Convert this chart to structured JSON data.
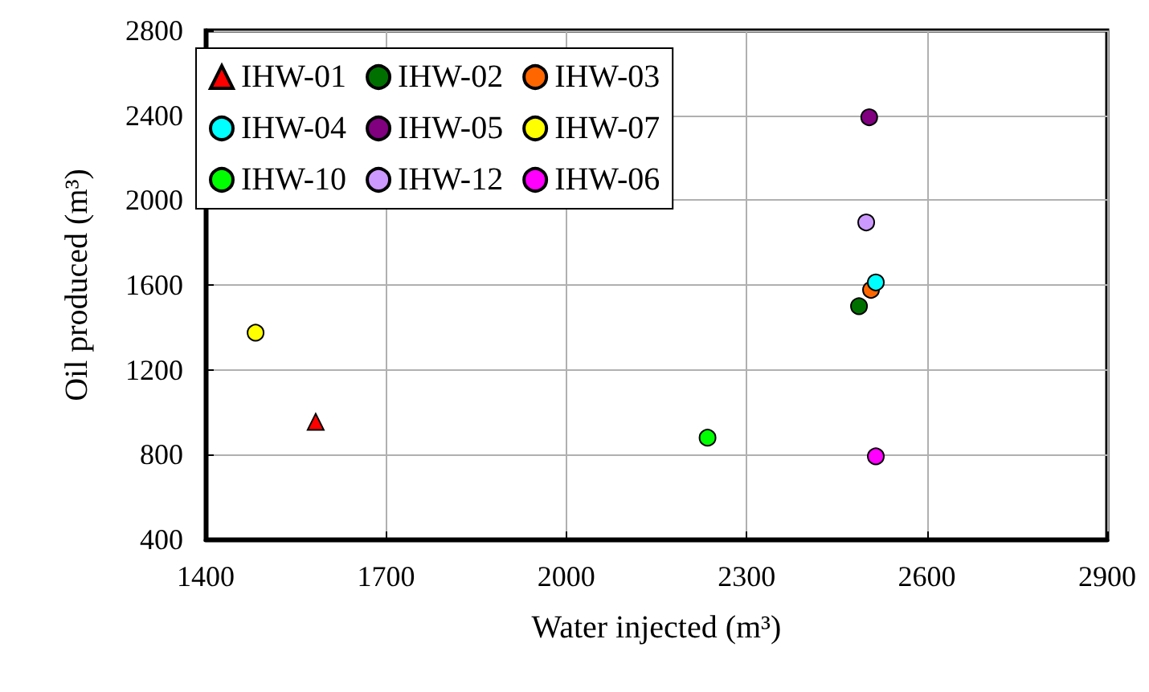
{
  "chart_data": {
    "type": "scatter",
    "xlabel": "Water injected (m³)",
    "ylabel": "Oil produced (m³)",
    "xlim": [
      1400,
      2900
    ],
    "xticks": [
      1400,
      1700,
      2000,
      2300,
      2600,
      2900
    ],
    "ylim": [
      400,
      2800
    ],
    "yticks": [
      400,
      800,
      1200,
      1600,
      2000,
      2400,
      2800
    ],
    "grid": true,
    "legend": "top left",
    "series": [
      {
        "name": "IHW-01",
        "color": "#ff0000",
        "marker": "triangle",
        "x": [
          1583
        ],
        "values": [
          955
        ]
      },
      {
        "name": "IHW-02",
        "color": "#007000",
        "marker": "circle",
        "x": [
          2487
        ],
        "values": [
          1500
        ]
      },
      {
        "name": "IHW-03",
        "color": "#ff6600",
        "marker": "circle",
        "x": [
          2507
        ],
        "values": [
          1577
        ]
      },
      {
        "name": "IHW-04",
        "color": "#00ffff",
        "marker": "circle",
        "x": [
          2515
        ],
        "values": [
          1612
        ]
      },
      {
        "name": "IHW-05",
        "color": "#800080",
        "marker": "circle",
        "x": [
          2504
        ],
        "values": [
          2391
        ]
      },
      {
        "name": "IHW-07",
        "color": "#ffff00",
        "marker": "circle",
        "x": [
          1483
        ],
        "values": [
          1375
        ]
      },
      {
        "name": "IHW-10",
        "color": "#00ff00",
        "marker": "circle",
        "x": [
          2235
        ],
        "values": [
          880
        ]
      },
      {
        "name": "IHW-12",
        "color": "#cc99ff",
        "marker": "circle",
        "x": [
          2499
        ],
        "values": [
          1895
        ]
      },
      {
        "name": "IHW-06",
        "color": "#ff00ff",
        "marker": "circle",
        "x": [
          2515
        ],
        "values": [
          792
        ]
      }
    ]
  }
}
